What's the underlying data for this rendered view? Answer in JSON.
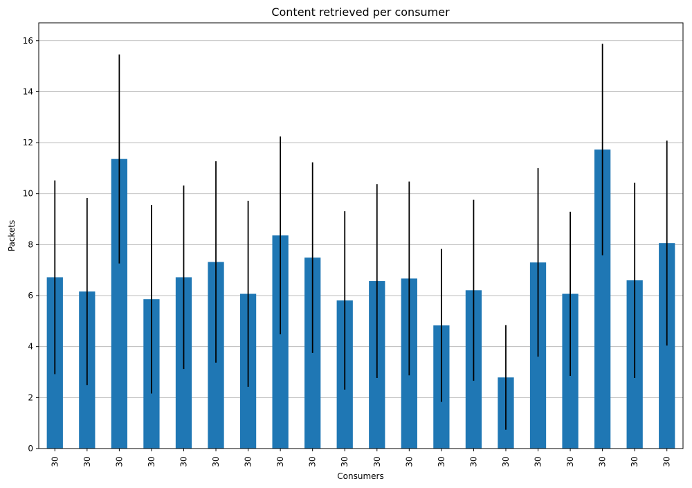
{
  "chart_data": {
    "type": "bar",
    "title": "Content retrieved per consumer",
    "xlabel": "Consumers",
    "ylabel": "Packets",
    "categories": [
      "30",
      "30",
      "30",
      "30",
      "30",
      "30",
      "30",
      "30",
      "30",
      "30",
      "30",
      "30",
      "30",
      "30",
      "30",
      "30",
      "30",
      "30",
      "30",
      "30"
    ],
    "values": [
      6.72,
      6.16,
      11.36,
      5.86,
      6.72,
      7.32,
      6.07,
      8.36,
      7.49,
      5.81,
      6.57,
      6.67,
      4.83,
      6.21,
      2.79,
      7.3,
      6.07,
      11.73,
      6.6,
      8.06
    ],
    "errors": [
      3.8,
      3.67,
      4.1,
      3.7,
      3.6,
      3.95,
      3.65,
      3.88,
      3.74,
      3.5,
      3.8,
      3.8,
      3.0,
      3.55,
      2.05,
      3.7,
      3.22,
      4.15,
      3.83,
      4.02
    ],
    "ylim": [
      0,
      16.7
    ],
    "yticks": [
      0,
      2,
      4,
      6,
      8,
      10,
      12,
      14,
      16
    ],
    "grid": "y",
    "legend": "none",
    "colors": {
      "bar": "#1f77b4",
      "errorbar": "#000000",
      "grid": "#b0b0b0"
    }
  }
}
